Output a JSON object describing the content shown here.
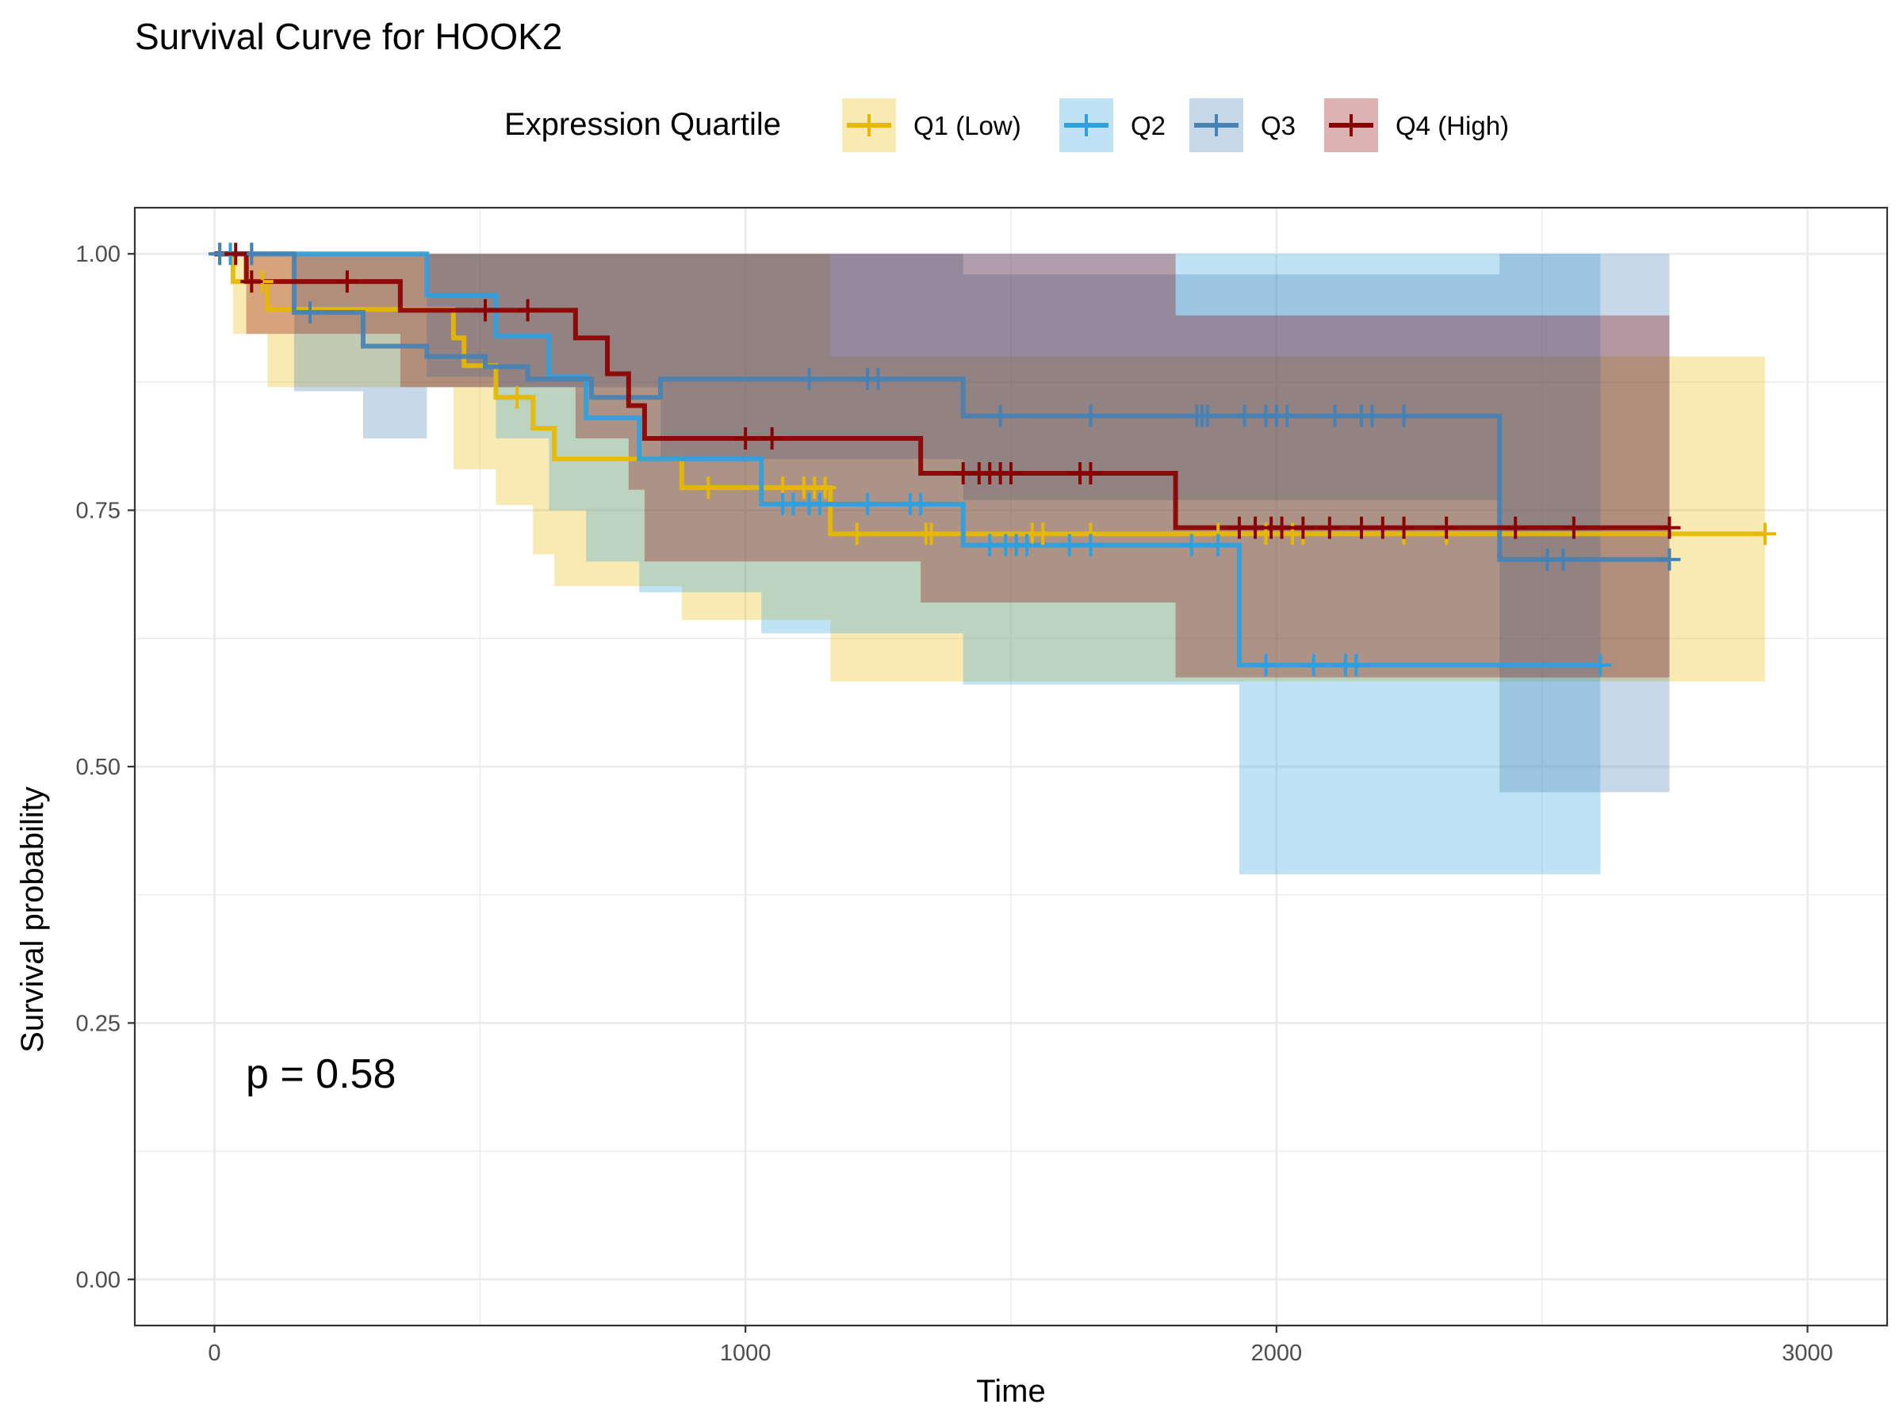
{
  "chart_data": {
    "type": "line",
    "subtype": "kaplan-meier step curves with confidence bands",
    "title": "Survival Curve for HOOK2",
    "xlabel": "Time",
    "ylabel": "Survival probability",
    "xlim": [
      -150,
      3150
    ],
    "ylim": [
      -0.045,
      1.045
    ],
    "x_ticks": [
      0,
      1000,
      2000,
      3000
    ],
    "x_tick_labels": [
      "0",
      "1000",
      "2000",
      "3000"
    ],
    "y_ticks": [
      0,
      0.25,
      0.5,
      0.75,
      1
    ],
    "y_tick_labels": [
      "0.00",
      "0.25",
      "0.50",
      "0.75",
      "1.00"
    ],
    "grid": true,
    "legend": {
      "title": "Expression Quartile",
      "position": "top",
      "entries": [
        "Q1 (Low)",
        "Q2",
        "Q3",
        "Q4 (High)"
      ]
    },
    "annotation": "p = 0.58",
    "series": [
      {
        "name": "Q1 (Low)",
        "color": "#E7B800",
        "steps": [
          [
            0,
            1.0
          ],
          [
            35,
            0.973
          ],
          [
            100,
            0.946
          ],
          [
            450,
            0.918
          ],
          [
            470,
            0.891
          ],
          [
            530,
            0.86
          ],
          [
            600,
            0.83
          ],
          [
            640,
            0.8
          ],
          [
            880,
            0.772
          ],
          [
            1160,
            0.727
          ],
          [
            2920,
            0.727
          ]
        ],
        "ci_lower": [
          [
            0,
            1.0
          ],
          [
            35,
            0.922
          ],
          [
            100,
            0.87
          ],
          [
            450,
            0.79
          ],
          [
            530,
            0.755
          ],
          [
            600,
            0.707
          ],
          [
            640,
            0.676
          ],
          [
            880,
            0.643
          ],
          [
            1160,
            0.583
          ],
          [
            2920,
            0.583
          ]
        ],
        "ci_upper": [
          [
            0,
            1.0
          ],
          [
            100,
            1.0
          ],
          [
            530,
            1.0
          ],
          [
            880,
            1.0
          ],
          [
            1160,
            0.9
          ],
          [
            2920,
            0.9
          ]
        ],
        "censor_times": [
          30,
          70,
          90,
          570,
          930,
          1070,
          1110,
          1130,
          1150,
          1210,
          1340,
          1350,
          1540,
          1560,
          1650,
          1890,
          1980,
          2030,
          2050,
          2240,
          2320,
          2920
        ],
        "censor_values": [
          1.0,
          0.973,
          0.973,
          0.86,
          0.772,
          0.772,
          0.772,
          0.772,
          0.772,
          0.727,
          0.727,
          0.727,
          0.727,
          0.727,
          0.727,
          0.727,
          0.727,
          0.727,
          0.727,
          0.727,
          0.727,
          0.727
        ]
      },
      {
        "name": "Q2",
        "color": "#2E9FDF",
        "steps": [
          [
            0,
            1.0
          ],
          [
            400,
            0.96
          ],
          [
            530,
            0.92
          ],
          [
            630,
            0.88
          ],
          [
            700,
            0.84
          ],
          [
            800,
            0.8
          ],
          [
            1030,
            0.756
          ],
          [
            1410,
            0.716
          ],
          [
            1930,
            0.599
          ],
          [
            2610,
            0.599
          ]
        ],
        "ci_lower": [
          [
            0,
            1.0
          ],
          [
            400,
            0.88
          ],
          [
            530,
            0.82
          ],
          [
            630,
            0.75
          ],
          [
            700,
            0.7
          ],
          [
            800,
            0.67
          ],
          [
            1030,
            0.63
          ],
          [
            1410,
            0.58
          ],
          [
            1930,
            0.395
          ],
          [
            2610,
            0.395
          ]
        ],
        "ci_upper": [
          [
            0,
            1.0
          ],
          [
            2610,
            1.0
          ]
        ],
        "censor_times": [
          10,
          30,
          70,
          1070,
          1090,
          1120,
          1140,
          1230,
          1310,
          1330,
          1460,
          1490,
          1510,
          1530,
          1610,
          1650,
          1840,
          1890,
          1980,
          2070,
          2130,
          2150,
          2610
        ],
        "censor_values": [
          1.0,
          1.0,
          1.0,
          0.756,
          0.756,
          0.756,
          0.756,
          0.756,
          0.756,
          0.756,
          0.716,
          0.716,
          0.716,
          0.716,
          0.716,
          0.716,
          0.716,
          0.716,
          0.599,
          0.599,
          0.599,
          0.599,
          0.599
        ]
      },
      {
        "name": "Q3",
        "color": "#4682B4",
        "steps": [
          [
            0,
            1.0
          ],
          [
            150,
            0.943
          ],
          [
            280,
            0.91
          ],
          [
            400,
            0.9
          ],
          [
            510,
            0.89
          ],
          [
            590,
            0.878
          ],
          [
            710,
            0.86
          ],
          [
            840,
            0.878
          ],
          [
            1410,
            0.842
          ],
          [
            2420,
            0.702
          ],
          [
            2740,
            0.702
          ]
        ],
        "ci_lower": [
          [
            0,
            1.0
          ],
          [
            150,
            0.866
          ],
          [
            280,
            0.82
          ],
          [
            400,
            0.87
          ],
          [
            840,
            0.8
          ],
          [
            1410,
            0.76
          ],
          [
            2420,
            0.475
          ],
          [
            2740,
            0.475
          ]
        ],
        "ci_upper": [
          [
            0,
            1.0
          ],
          [
            1410,
            0.98
          ],
          [
            2420,
            1.0
          ],
          [
            2740,
            1.0
          ]
        ],
        "censor_times": [
          10,
          70,
          180,
          1120,
          1230,
          1250,
          1480,
          1650,
          1850,
          1860,
          1870,
          1940,
          1980,
          2000,
          2020,
          2110,
          2160,
          2180,
          2240,
          2510,
          2540,
          2740
        ],
        "censor_values": [
          1.0,
          1.0,
          0.943,
          0.878,
          0.878,
          0.878,
          0.842,
          0.842,
          0.842,
          0.842,
          0.842,
          0.842,
          0.842,
          0.842,
          0.842,
          0.842,
          0.842,
          0.842,
          0.842,
          0.702,
          0.702,
          0.702
        ]
      },
      {
        "name": "Q4 (High)",
        "color": "#8B0000",
        "steps": [
          [
            0,
            1.0
          ],
          [
            60,
            0.973
          ],
          [
            350,
            0.945
          ],
          [
            680,
            0.918
          ],
          [
            740,
            0.883
          ],
          [
            780,
            0.852
          ],
          [
            810,
            0.82
          ],
          [
            1330,
            0.786
          ],
          [
            1810,
            0.733
          ],
          [
            2740,
            0.733
          ]
        ],
        "ci_lower": [
          [
            0,
            1.0
          ],
          [
            60,
            0.922
          ],
          [
            350,
            0.87
          ],
          [
            680,
            0.82
          ],
          [
            780,
            0.77
          ],
          [
            810,
            0.7
          ],
          [
            1330,
            0.66
          ],
          [
            1810,
            0.587
          ],
          [
            2740,
            0.587
          ]
        ],
        "ci_upper": [
          [
            0,
            1.0
          ],
          [
            1810,
            0.94
          ],
          [
            2740,
            0.92
          ]
        ],
        "censor_times": [
          40,
          70,
          250,
          510,
          590,
          1000,
          1050,
          1410,
          1440,
          1460,
          1480,
          1500,
          1630,
          1650,
          1930,
          1960,
          1990,
          2010,
          2050,
          2100,
          2160,
          2200,
          2240,
          2320,
          2450,
          2560,
          2740
        ],
        "censor_values": [
          1.0,
          0.973,
          0.973,
          0.945,
          0.945,
          0.82,
          0.82,
          0.786,
          0.786,
          0.786,
          0.786,
          0.786,
          0.786,
          0.786,
          0.733,
          0.733,
          0.733,
          0.733,
          0.733,
          0.733,
          0.733,
          0.733,
          0.733,
          0.733,
          0.733,
          0.733,
          0.733
        ]
      }
    ]
  }
}
